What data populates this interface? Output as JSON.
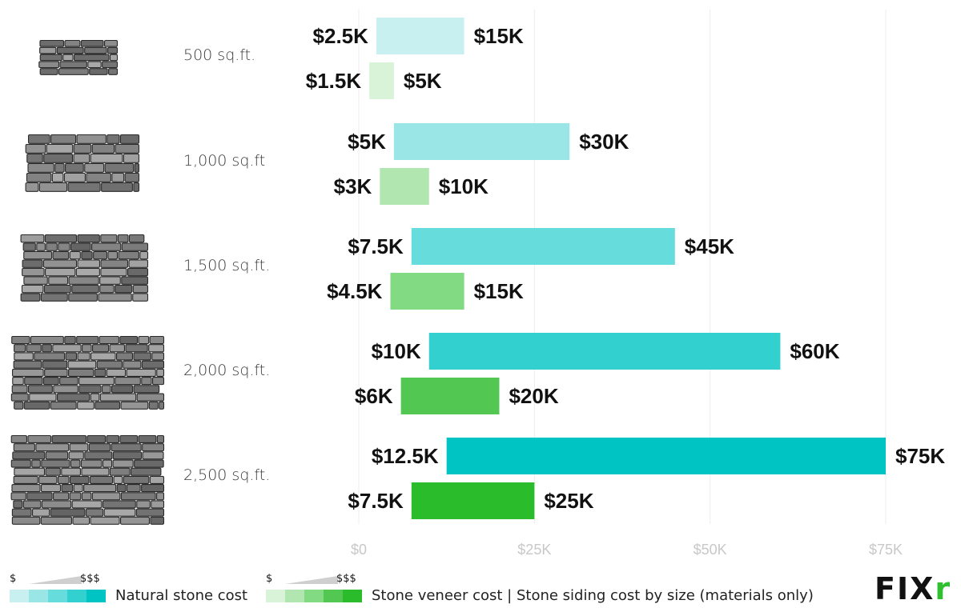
{
  "chart_data": {
    "type": "bar",
    "categories": [
      "500 sq.ft.",
      "1,000 sq.ft",
      "1,500 sq.ft.",
      "2,000 sq.ft.",
      "2,500 sq.ft."
    ],
    "series": [
      {
        "name": "Natural stone cost",
        "ranges": [
          [
            2.5,
            15
          ],
          [
            5,
            30
          ],
          [
            7.5,
            45
          ],
          [
            10,
            60
          ],
          [
            12.5,
            75
          ]
        ],
        "low_labels": [
          "$2.5K",
          "$5K",
          "$7.5K",
          "$10K",
          "$12.5K"
        ],
        "high_labels": [
          "$15K",
          "$30K",
          "$45K",
          "$60K",
          "$75K"
        ],
        "colors": [
          "#c8f0f0",
          "#9ae6e6",
          "#66dcdc",
          "#33d0d0",
          "#00c4c4"
        ]
      },
      {
        "name": "Stone veneer cost | Stone siding cost by size (materials only)",
        "ranges": [
          [
            1.5,
            5
          ],
          [
            3,
            10
          ],
          [
            4.5,
            15
          ],
          [
            6,
            20
          ],
          [
            7.5,
            25
          ]
        ],
        "low_labels": [
          "$1.5K",
          "$3K",
          "$4.5K",
          "$6K",
          "$7.5K"
        ],
        "high_labels": [
          "$5K",
          "$10K",
          "$15K",
          "$20K",
          "$25K"
        ],
        "colors": [
          "#d9f3d9",
          "#b1e6b1",
          "#82da82",
          "#52c852",
          "#2abc2a"
        ]
      }
    ],
    "x_unit": "thousand USD",
    "xlim": [
      0,
      85
    ],
    "xticks": [
      0,
      25,
      50,
      75
    ],
    "xtick_labels": [
      "$0",
      "$25K",
      "$50K",
      "$75K"
    ],
    "grid": true,
    "title": "",
    "xlabel": "",
    "ylabel": ""
  },
  "legend": {
    "low_symbol": "$",
    "high_symbol": "$$$",
    "natural_label": "Natural stone cost",
    "veneer_label": "Stone veneer cost | Stone siding cost by size (materials only)",
    "natural_ramp": [
      "#c8f0f0",
      "#9ae6e6",
      "#66dcdc",
      "#33d0d0",
      "#00c4c4"
    ],
    "veneer_ramp": [
      "#d9f3d9",
      "#b1e6b1",
      "#82da82",
      "#52c852",
      "#2abc2a"
    ]
  },
  "brand": {
    "logo_text": "FIX",
    "logo_accent": "r"
  }
}
